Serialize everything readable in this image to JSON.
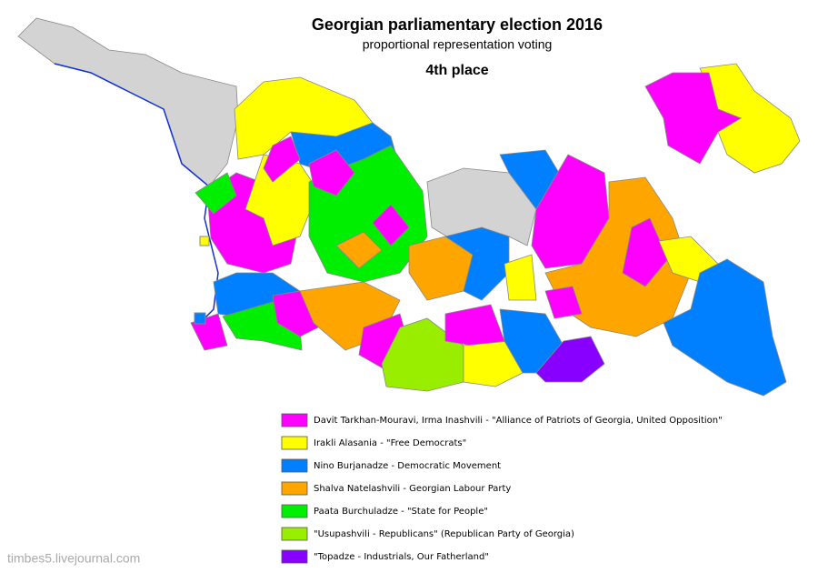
{
  "title": "Georgian parliamentary election 2016",
  "subtitle": "proportional representation voting",
  "place": "4th place",
  "legend": [
    {
      "label": "Davit Tarkhan-Mouravi, Irma Inashvili - \"Alliance of Patriots of Georgia, United Opposition\"",
      "color": "#ff00ff"
    },
    {
      "label": "Irakli Alasania - \"Free Democrats\"",
      "color": "#ffff00"
    },
    {
      "label": "Nino Burjanadze - Democratic Movement",
      "color": "#0080ff"
    },
    {
      "label": "Shalva Natelashvili - Georgian Labour Party",
      "color": "#ffa500"
    },
    {
      "label": "Paata Burchuladze - \"State for People\"",
      "color": "#00ee00"
    },
    {
      "label": "\"Usupashvili - Republicans\" (Republican Party of Georgia)",
      "color": "#99ee00"
    },
    {
      "label": "\"Topadze - Industrials, Our Fatherland\"",
      "color": "#8800ff"
    }
  ],
  "watermark": "timbes5.livejournal.com"
}
